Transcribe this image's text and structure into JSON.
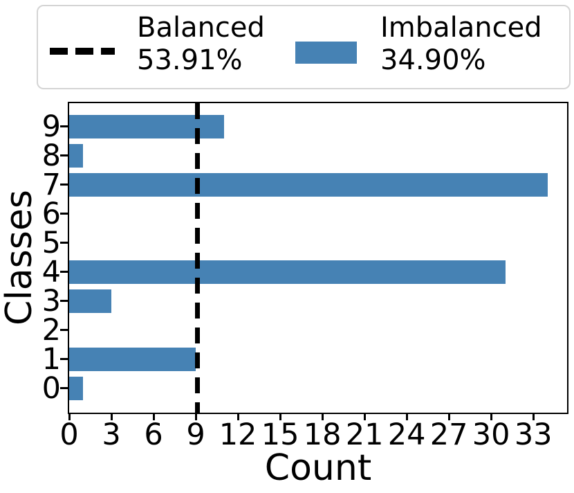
{
  "figure": {
    "kind": "matplotlib horizontal bar chart",
    "background": "#ffffff"
  },
  "legend": {
    "entries": [
      {
        "label": "Balanced",
        "pct": "53.91%",
        "swatch": "dashed-line",
        "color": "#000000"
      },
      {
        "label": "Imbalanced",
        "pct": "34.90%",
        "swatch": "filled-bar",
        "color": "#4682b4"
      }
    ]
  },
  "chart_data": {
    "type": "bar",
    "orientation": "horizontal",
    "title": "",
    "xlabel": "Count",
    "ylabel": "Classes",
    "categories": [
      "9",
      "8",
      "7",
      "6",
      "5",
      "4",
      "3",
      "2",
      "1",
      "0"
    ],
    "values": [
      11,
      1,
      34,
      0,
      0,
      31,
      3,
      0,
      9,
      1
    ],
    "bar_color": "#4682b4",
    "x_ticks": [
      "0",
      "3",
      "6",
      "9",
      "12",
      "15",
      "18",
      "21",
      "24",
      "27",
      "30",
      "33"
    ],
    "x_tick_values": [
      0,
      3,
      6,
      9,
      12,
      15,
      18,
      21,
      24,
      27,
      30,
      33
    ],
    "xlim": [
      0,
      35.4
    ],
    "grid": false,
    "legend_position": "top-outside",
    "reference_line": {
      "value": 9,
      "style": "dashed",
      "color": "#000000",
      "legend_label": "Balanced 53.91%"
    }
  }
}
